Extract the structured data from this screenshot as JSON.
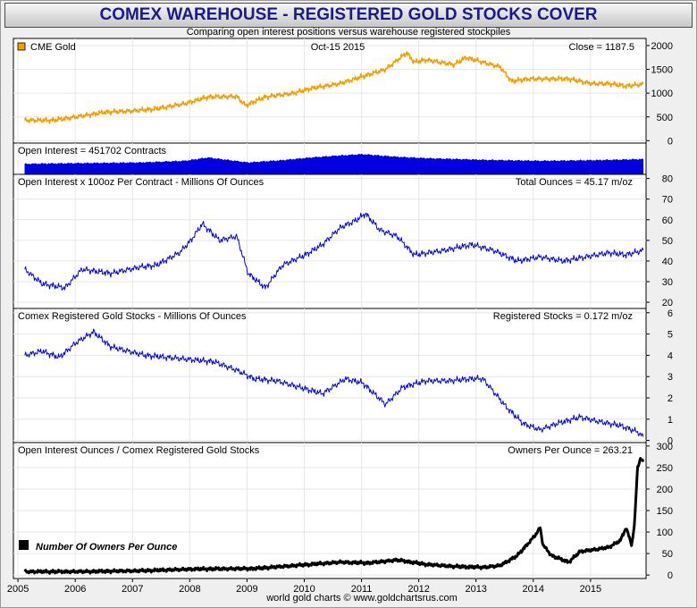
{
  "header": {
    "title": "COMEX WAREHOUSE - REGISTERED GOLD STOCKS COVER",
    "subtitle": "Comparing open interest positions versus warehouse registered stockpiles"
  },
  "footer": {
    "credit": "world gold charts © www.goldchartsrus.com"
  },
  "colors": {
    "gold": "#f0a000",
    "blue": "#0000e0",
    "black": "#000000",
    "frame": "#efefef"
  },
  "chart_data": [
    {
      "type": "line",
      "panel": "gold",
      "series": [
        {
          "name": "CME Gold",
          "color": "#f0a000",
          "x": [
            2005.0,
            2005.5,
            2006.0,
            2006.4,
            2006.8,
            2007.3,
            2007.8,
            2008.2,
            2008.7,
            2008.85,
            2009.2,
            2009.7,
            2010.0,
            2010.5,
            2010.9,
            2011.3,
            2011.67,
            2011.8,
            2012.0,
            2012.5,
            2012.7,
            2013.0,
            2013.3,
            2013.5,
            2013.8,
            2014.2,
            2014.5,
            2014.9,
            2015.2,
            2015.5,
            2015.8
          ],
          "values": [
            430,
            430,
            520,
            600,
            620,
            670,
            780,
            920,
            930,
            740,
            920,
            1000,
            1100,
            1200,
            1350,
            1500,
            1850,
            1650,
            1700,
            1600,
            1750,
            1650,
            1550,
            1250,
            1300,
            1300,
            1300,
            1200,
            1200,
            1150,
            1187.5
          ]
        }
      ],
      "legend": "CME Gold",
      "date_label": "Oct-15  2015",
      "right_label": "Close = 1187.5",
      "yticks": [
        0,
        500,
        1000,
        1500,
        2000
      ],
      "ylim": [
        -50,
        2150
      ]
    },
    {
      "type": "area",
      "panel": "open_interest",
      "label": "Open Interest = 451702 Contracts",
      "series": [
        {
          "name": "Open Interest",
          "color": "#0000e0",
          "x": [
            2005.0,
            2006.0,
            2007.0,
            2007.8,
            2008.2,
            2008.9,
            2009.5,
            2010.0,
            2010.5,
            2010.9,
            2011.5,
            2012.0,
            2013.0,
            2014.0,
            2015.0,
            2015.8
          ],
          "values": [
            310000,
            330000,
            350000,
            400000,
            500000,
            350000,
            420000,
            500000,
            560000,
            600000,
            520000,
            480000,
            430000,
            400000,
            420000,
            451702
          ]
        }
      ]
    },
    {
      "type": "line",
      "panel": "ounces",
      "label": "Open Interest x 100oz Per Contract - Millions Of Ounces",
      "right_label": "Total Ounces = 45.17 m/oz",
      "series": [
        {
          "name": "Total Ounces",
          "color": "#0000e0",
          "x": [
            2005.0,
            2005.3,
            2005.7,
            2006.0,
            2006.5,
            2007.0,
            2007.3,
            2007.7,
            2007.9,
            2008.1,
            2008.4,
            2008.7,
            2008.9,
            2009.2,
            2009.5,
            2009.9,
            2010.2,
            2010.5,
            2010.8,
            2010.95,
            2011.2,
            2011.5,
            2011.8,
            2012.3,
            2012.8,
            2013.2,
            2013.6,
            2014.0,
            2014.4,
            2014.8,
            2015.2,
            2015.5,
            2015.8
          ],
          "values": [
            36,
            29,
            27,
            36,
            34,
            37,
            38,
            44,
            50,
            58,
            50,
            52,
            34,
            27,
            38,
            43,
            48,
            56,
            60,
            63,
            55,
            52,
            43,
            45,
            48,
            45,
            40,
            42,
            40,
            42,
            44,
            43,
            45.17
          ]
        }
      ],
      "yticks": [
        20,
        30,
        40,
        50,
        60,
        70,
        80
      ],
      "ylim": [
        17,
        82
      ]
    },
    {
      "type": "line",
      "panel": "registered",
      "label": "Comex Registered Gold Stocks - Millions Of Ounces",
      "right_label": "Registered Stocks = 0.172 m/oz",
      "series": [
        {
          "name": "Registered Stocks",
          "color": "#0000e0",
          "x": [
            2005.0,
            2005.3,
            2005.6,
            2005.9,
            2006.2,
            2006.5,
            2006.8,
            2007.1,
            2007.5,
            2007.9,
            2008.3,
            2008.7,
            2009.0,
            2009.4,
            2009.8,
            2010.2,
            2010.6,
            2010.9,
            2011.3,
            2011.6,
            2012.0,
            2012.4,
            2012.8,
            2013.0,
            2013.4,
            2013.7,
            2014.0,
            2014.3,
            2014.7,
            2015.0,
            2015.4,
            2015.7,
            2015.8
          ],
          "values": [
            4.0,
            4.2,
            3.9,
            4.6,
            5.1,
            4.4,
            4.2,
            4.0,
            3.9,
            3.8,
            3.7,
            3.3,
            2.9,
            2.8,
            2.5,
            2.2,
            2.9,
            2.7,
            1.7,
            2.5,
            2.8,
            2.8,
            2.9,
            2.9,
            1.6,
            0.8,
            0.5,
            0.8,
            1.1,
            0.9,
            0.7,
            0.4,
            0.172
          ]
        }
      ],
      "yticks": [
        0,
        1,
        2,
        3,
        4,
        5,
        6
      ],
      "ylim": [
        -0.1,
        6.2
      ]
    },
    {
      "type": "line",
      "panel": "owners",
      "label": "Open Interest Ounces / Comex Registered Gold Stocks",
      "right_label": "Owners Per Ounce = 263.21",
      "legend": "Number Of Owners Per Ounce",
      "series": [
        {
          "name": "Number Of Owners Per Ounce",
          "color": "#000000",
          "x": [
            2005.0,
            2006.0,
            2007.0,
            2008.0,
            2009.0,
            2009.5,
            2010.0,
            2010.5,
            2011.0,
            2011.5,
            2012.0,
            2012.5,
            2013.0,
            2013.3,
            2013.6,
            2013.9,
            2014.0,
            2014.05,
            2014.2,
            2014.5,
            2014.7,
            2015.0,
            2015.2,
            2015.4,
            2015.5,
            2015.6,
            2015.65,
            2015.7,
            2015.75,
            2015.8
          ],
          "values": [
            8,
            8,
            10,
            14,
            15,
            20,
            25,
            30,
            28,
            35,
            25,
            20,
            18,
            22,
            45,
            90,
            110,
            70,
            45,
            30,
            55,
            60,
            65,
            80,
            110,
            70,
            120,
            250,
            270,
            263.21
          ]
        }
      ],
      "yticks": [
        0,
        50,
        100,
        150,
        200,
        250,
        300
      ],
      "ylim": [
        -8,
        308
      ]
    }
  ],
  "x_axis": {
    "ticks": [
      "2005",
      "2006",
      "2007",
      "2008",
      "2009",
      "2010",
      "2011",
      "2012",
      "2013",
      "2014",
      "2015"
    ],
    "xlim": [
      2004.8,
      2015.85
    ]
  }
}
